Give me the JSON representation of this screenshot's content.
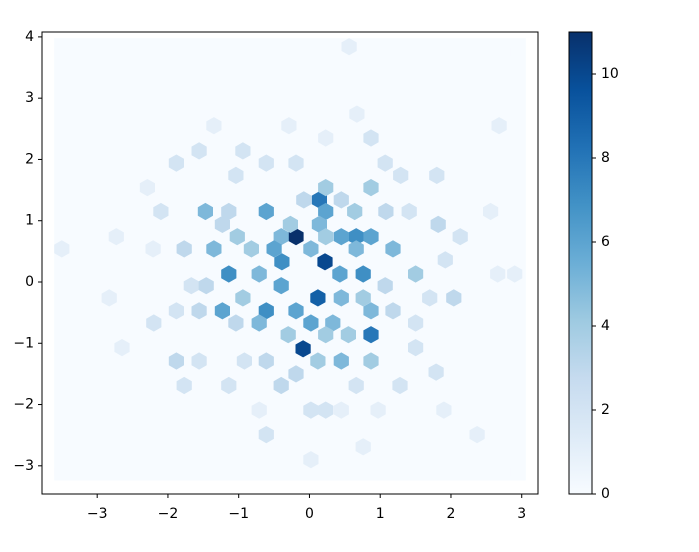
{
  "chart_data": {
    "type": "hexbin",
    "x": [
      -0.19,
      0.22,
      -0.09,
      0.12,
      0.14,
      0.66,
      0.87,
      -1.14,
      -0.39,
      -0.61,
      -0.19,
      -1.23,
      0.43,
      0.76,
      -0.61,
      0.23,
      0.87,
      1.18,
      0.45,
      -1.35,
      -1.47,
      0.64,
      -0.71,
      -0.4,
      0.02,
      0.33,
      0.45,
      0.23,
      0.87,
      0.45,
      0.87,
      -0.4,
      -0.71,
      -0.5,
      0.02,
      0.76,
      1.5,
      0.66,
      0.14,
      -0.27,
      -1.02,
      -1.77,
      -0.94,
      -0.3,
      0.12,
      0.87,
      -1.88,
      -0.4,
      -0.61,
      2.04,
      1.82,
      -2.2,
      0.56,
      -2.83,
      -3.5,
      2.9,
      2.66,
      2.56,
      -1.35,
      2.68,
      -2.73,
      -2.65,
      2.37,
      0.02,
      0.76,
      -2.29,
      -0.94,
      0.67,
      0.87,
      1.9,
      -1.56,
      -1.14,
      1.28,
      1.79,
      1.5,
      -1.67,
      -1.88,
      -1.46,
      1.5,
      1.7,
      1.92,
      2.13,
      1.8,
      1.29,
      -0.61,
      -0.19,
      0.23,
      -1.56,
      -1.88,
      -2.1,
      -2.21,
      -1.04,
      -0.29,
      1.07,
      1.41,
      -1.14,
      0.23,
      0.45,
      -0.71,
      -1.77,
      0.02,
      0.66,
      0.97,
      -0.82,
      0.23,
      -0.08,
      0.45,
      1.08,
      -1.23,
      -1.56,
      -1.04,
      1.07,
      1.18,
      0.55,
      -0.61,
      -0.92,
      -0.19,
      0.23,
      -3.5,
      2.95,
      -3.5,
      2.95
    ],
    "y": [
      0.74,
      0.33,
      -1.09,
      -0.26,
      1.34,
      0.74,
      -0.86,
      0.13,
      0.33,
      -0.47,
      -0.47,
      -0.47,
      0.13,
      0.13,
      1.15,
      1.15,
      0.74,
      0.54,
      0.74,
      0.54,
      1.15,
      1.15,
      -0.67,
      -0.06,
      -0.67,
      -0.67,
      -1.29,
      1.54,
      1.54,
      -0.26,
      -0.47,
      0.74,
      0.13,
      0.54,
      0.54,
      -0.26,
      0.13,
      0.54,
      0.94,
      0.94,
      0.74,
      0.54,
      -0.26,
      -0.86,
      -1.29,
      -1.29,
      -1.29,
      -1.69,
      -2.49,
      -0.26,
      0.94,
      -0.67,
      3.84,
      -0.26,
      0.54,
      0.13,
      0.13,
      1.15,
      2.55,
      2.55,
      0.74,
      -1.07,
      -2.49,
      -2.9,
      -2.69,
      1.54,
      2.14,
      2.74,
      2.35,
      -2.09,
      -1.29,
      -1.69,
      -1.69,
      -1.47,
      -1.07,
      -0.06,
      -0.47,
      -0.06,
      -0.67,
      -0.26,
      0.36,
      0.74,
      1.74,
      1.74,
      1.94,
      1.94,
      2.35,
      2.14,
      1.94,
      1.15,
      0.54,
      1.74,
      2.55,
      1.94,
      1.15,
      1.15,
      -2.09,
      -2.09,
      -2.09,
      -1.69,
      -2.09,
      -1.69,
      -2.09,
      0.54,
      0.74,
      1.34,
      1.34,
      1.15,
      0.94,
      -0.47,
      -0.67,
      -0.06,
      -0.47,
      -0.86,
      -1.29,
      -1.29,
      -1.5,
      -0.86,
      -3.1,
      -3.1,
      3.75,
      3.75
    ],
    "values": [
      11,
      10,
      10,
      9,
      8,
      7,
      8,
      7,
      7,
      7,
      6,
      6,
      6,
      7,
      6,
      6,
      6,
      5,
      6,
      5,
      5,
      4,
      5,
      6,
      6,
      5,
      5,
      4,
      4,
      5,
      5,
      5,
      5,
      6,
      5,
      4,
      4,
      5,
      5,
      4,
      4,
      3,
      4,
      4,
      4,
      4,
      3,
      3,
      2,
      3,
      3,
      2,
      1,
      1,
      1,
      1,
      1,
      1,
      1,
      1,
      1,
      1,
      1,
      1,
      1,
      1,
      2,
      1,
      2,
      1,
      2,
      2,
      2,
      2,
      2,
      2,
      2,
      3,
      2,
      2,
      2,
      2,
      2,
      2,
      2,
      2,
      1,
      2,
      2,
      2,
      1,
      2,
      1,
      2,
      2,
      3,
      2,
      1,
      1,
      2,
      2,
      2,
      1,
      4,
      4,
      3,
      3,
      3,
      3,
      3,
      3,
      3,
      3,
      4,
      3,
      2,
      3,
      4,
      0,
      0,
      0,
      0
    ],
    "cmap": "Blues",
    "xlim": [
      -3.78,
      3.23
    ],
    "ylim": [
      -3.46,
      4.08
    ],
    "xticks": [
      {
        "value": -3,
        "label": "−3"
      },
      {
        "value": -2,
        "label": "−2"
      },
      {
        "value": -1,
        "label": "−1"
      },
      0,
      1,
      2,
      3
    ],
    "yticks": [
      {
        "value": -3,
        "label": "−3"
      },
      {
        "value": -2,
        "label": "−2"
      },
      {
        "value": -1,
        "label": "−1"
      },
      0,
      1,
      2,
      3,
      4
    ],
    "colorbar": {
      "lim": [
        0,
        11
      ],
      "ticks": [
        0,
        2,
        4,
        6,
        8,
        10
      ]
    }
  }
}
